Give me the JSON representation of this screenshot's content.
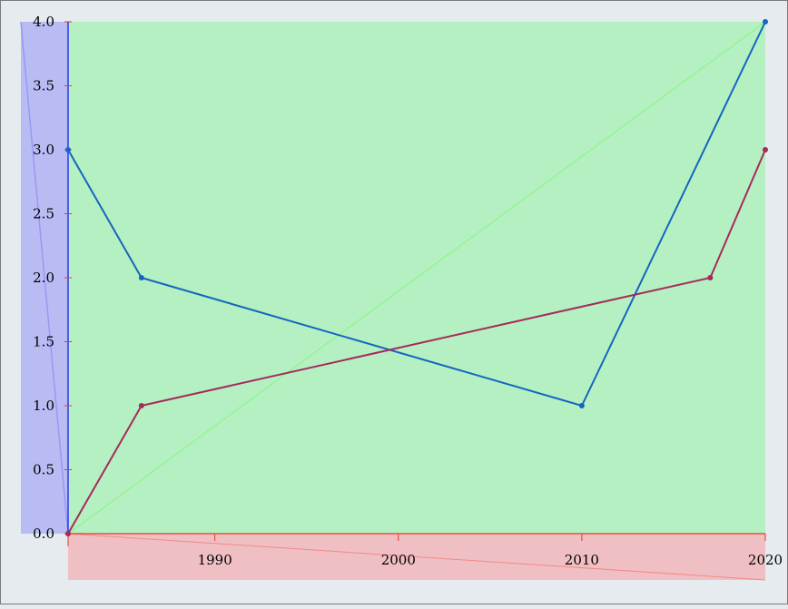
{
  "chart_data": {
    "type": "line",
    "x_ticks": [
      "1990",
      "2000",
      "2010",
      "2020"
    ],
    "y_ticks": [
      "0.0",
      "0.5",
      "1.0",
      "1.5",
      "2.0",
      "2.5",
      "3.0",
      "3.5",
      "4.0"
    ],
    "xlim": [
      1982,
      2020
    ],
    "ylim": [
      0,
      4
    ],
    "grid": false,
    "legend": "none",
    "series": [
      {
        "color": "#1565c0",
        "x": [
          1982,
          1986,
          2010,
          2020
        ],
        "y": [
          3,
          2,
          1,
          4
        ]
      },
      {
        "color": "#a52a5a",
        "x": [
          1982,
          1986,
          2017,
          2020
        ],
        "y": [
          0,
          1,
          2,
          3
        ]
      }
    ],
    "colors": {
      "plot_background": "#b5f0c2",
      "y_axis_band": "#b9bcf2",
      "x_axis_band": "#f0bfc3",
      "y_axis_line": "#1a1aff",
      "x_axis_line": "#e83a2a",
      "diagonal_green": "#8ef58a",
      "diagonal_blue": "#9898f6",
      "diagonal_red": "#f08a8a",
      "page_background": "#e6ebf0",
      "frame": "#7a7a7a"
    }
  }
}
